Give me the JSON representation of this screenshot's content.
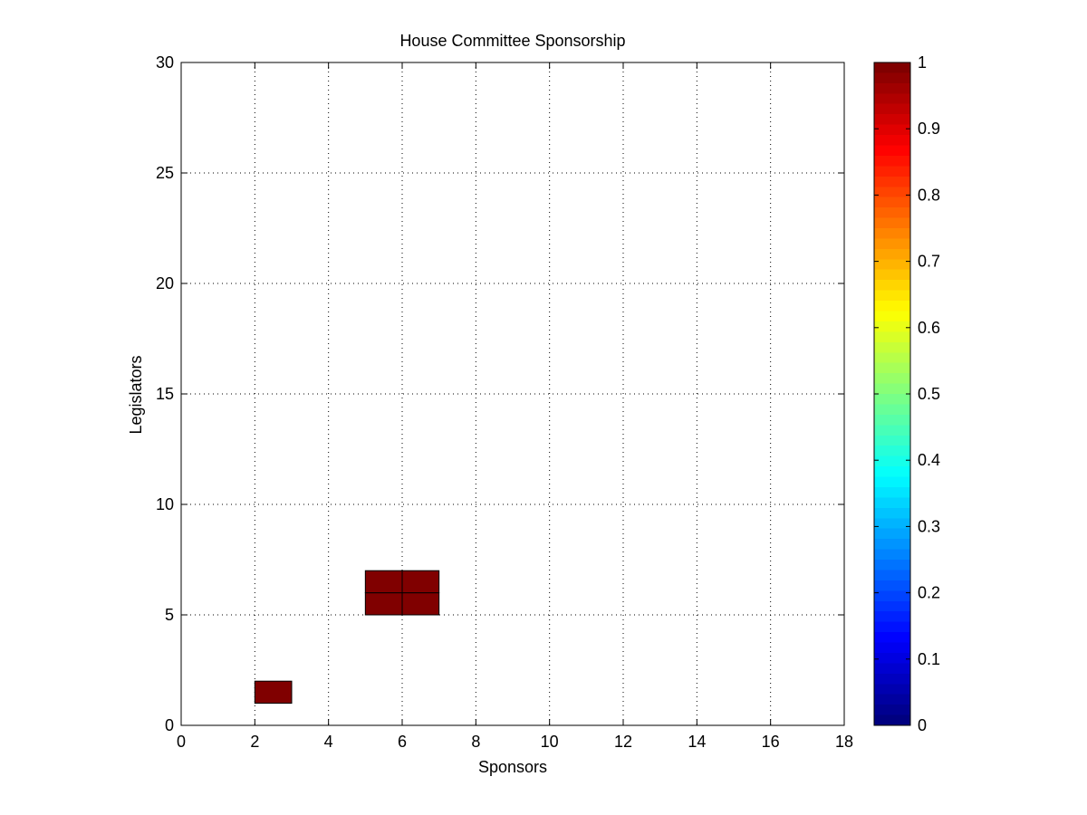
{
  "chart_data": {
    "type": "heatmap",
    "title": "House Committee Sponsorship",
    "xlabel": "Sponsors",
    "ylabel": "Legislators",
    "xlim": [
      0,
      18
    ],
    "ylim": [
      0,
      30
    ],
    "xticks": [
      0,
      2,
      4,
      6,
      8,
      10,
      12,
      14,
      16,
      18
    ],
    "yticks": [
      0,
      5,
      10,
      15,
      20,
      25,
      30
    ],
    "grid": true,
    "grid_style": "dotted",
    "cells": [
      {
        "x": 2,
        "y": 1,
        "value": 1
      },
      {
        "x": 5,
        "y": 5,
        "value": 1
      },
      {
        "x": 6,
        "y": 5,
        "value": 1
      },
      {
        "x": 5,
        "y": 6,
        "value": 1
      },
      {
        "x": 6,
        "y": 6,
        "value": 1
      }
    ],
    "colorbar": {
      "colormap": "jet",
      "range": [
        0,
        1
      ],
      "ticks": [
        "0",
        "0.1",
        "0.2",
        "0.3",
        "0.4",
        "0.5",
        "0.6",
        "0.7",
        "0.8",
        "0.9",
        "1"
      ],
      "placement": "right"
    },
    "cell_color": "#800000"
  }
}
